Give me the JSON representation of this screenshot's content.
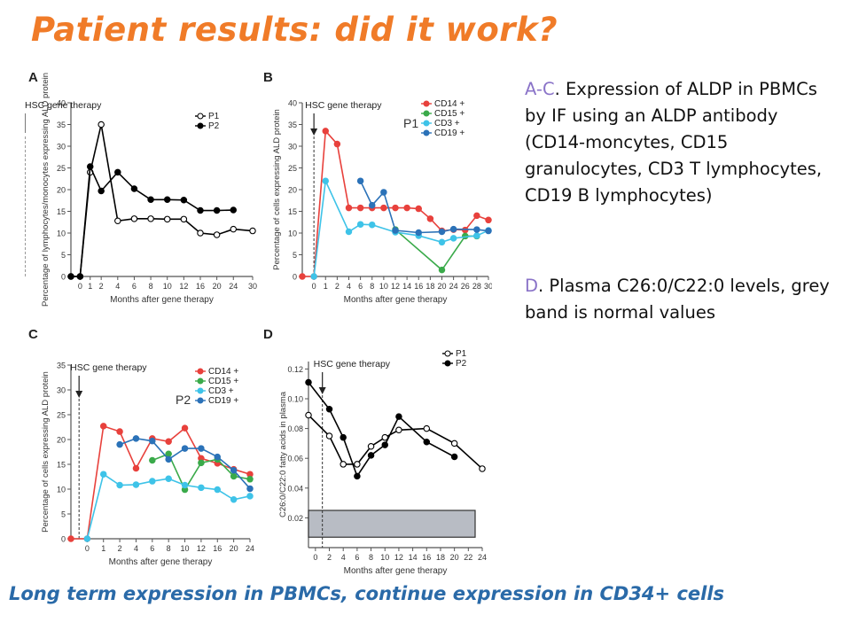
{
  "slide": {
    "title": "Patient results: did it work?",
    "text_ac_label": "A-C",
    "text_ac": ". Expression of ALDP in PBMCs by IF using an ALDP antibody (CD14-moncytes, CD15 granulocytes, CD3 T lymphocytes, CD19 B lymphocytes)",
    "text_d_label": "D",
    "text_d": ". Plasma C26:0/C22:0 levels, grey band is normal values",
    "caption": "Long term expression in PBMCs, continue expression in CD34+ cells"
  },
  "colors": {
    "title": "#f07b28",
    "caption": "#2a6aa8",
    "label": "#8a73c8",
    "CD14": "#e8413c",
    "CD15": "#3aaa4a",
    "CD3": "#3ec3e8",
    "CD19": "#2b72b8",
    "normal_band": "#b8bcc4"
  },
  "chart_data": [
    {
      "panel": "A",
      "type": "line",
      "ylabel": "Percentage of lymphocytes/monocytes expressing ALD protein",
      "xlabel": "Months after gene therapy",
      "annotation": "HSC gene therapy",
      "annotation_x": -0.5,
      "x_ticks": [
        0,
        1,
        2,
        4,
        6,
        8,
        10,
        12,
        16,
        20,
        24,
        30
      ],
      "x_tick_labels": [
        "0",
        "1",
        "2",
        "4",
        "6",
        "8",
        "10",
        "12",
        "16",
        "20",
        "24",
        "30"
      ],
      "y_ticks": [
        0,
        5,
        10,
        15,
        20,
        25,
        30,
        35,
        40
      ],
      "y_tick_labels": [
        "0",
        "5",
        "10",
        "15",
        "20",
        "25",
        "30",
        "35",
        "40"
      ],
      "ylim": [
        0,
        40
      ],
      "series": [
        {
          "name": "P1",
          "marker": "open",
          "color": "#000000",
          "x": [
            -1,
            0,
            1,
            2,
            4,
            6,
            8,
            10,
            12,
            16,
            20,
            24,
            30
          ],
          "y": [
            0,
            0,
            24,
            35,
            12.8,
            13.3,
            13.3,
            13.2,
            13.2,
            10,
            9.6,
            10.9,
            10.5
          ]
        },
        {
          "name": "P2",
          "marker": "filled",
          "color": "#000000",
          "x": [
            -1,
            0,
            1,
            2,
            4,
            6,
            8,
            10,
            12,
            16,
            20,
            24
          ],
          "y": [
            0,
            0,
            25.3,
            19.7,
            24,
            20.2,
            17.7,
            17.7,
            17.6,
            15.2,
            15.2,
            15.3
          ]
        }
      ],
      "legend": "top-right"
    },
    {
      "panel": "B",
      "type": "line",
      "ylabel": "Percentage of cells expressing ALD protein",
      "xlabel": "Months after gene therapy",
      "annotation": "HSC gene therapy",
      "annotation_x": 0,
      "group_label": "P1",
      "x_ticks": [
        0,
        1,
        2,
        4,
        6,
        8,
        10,
        12,
        14,
        16,
        18,
        20,
        24,
        26,
        28,
        30
      ],
      "x_tick_labels": [
        "0",
        "1",
        "2",
        "4",
        "6",
        "8",
        "10",
        "12",
        "14",
        "16",
        "18",
        "20",
        "24",
        "26",
        "28",
        "30"
      ],
      "y_ticks": [
        0,
        5,
        10,
        15,
        20,
        25,
        30,
        35,
        40
      ],
      "y_tick_labels": [
        "0",
        "5",
        "10",
        "15",
        "20",
        "25",
        "30",
        "35",
        "40"
      ],
      "ylim": [
        0,
        40
      ],
      "series": [
        {
          "name": "CD14 +",
          "color": "#e8413c",
          "x": [
            -1,
            0,
            1,
            2,
            4,
            6,
            8,
            10,
            12,
            14,
            16,
            18,
            20,
            24,
            26,
            28,
            30
          ],
          "y": [
            0,
            0,
            33.5,
            30.5,
            15.8,
            15.8,
            15.8,
            15.8,
            15.8,
            15.8,
            15.6,
            13.3,
            10.5,
            10.8,
            10.7,
            14,
            13
          ]
        },
        {
          "name": "CD15 +",
          "color": "#3aaa4a",
          "x": [
            12,
            20,
            26,
            28
          ],
          "y": [
            10.8,
            1.5,
            9.3,
            9.3
          ]
        },
        {
          "name": "CD3 +",
          "color": "#3ec3e8",
          "x": [
            0,
            1,
            4,
            6,
            8,
            12,
            16,
            20,
            24,
            28,
            30
          ],
          "y": [
            0,
            22,
            10.3,
            12,
            11.9,
            10.2,
            9.4,
            7.9,
            8.8,
            9.4,
            10.6
          ]
        },
        {
          "name": "CD19 +",
          "color": "#2b72b8",
          "x": [
            6,
            8,
            10,
            12,
            16,
            20,
            24,
            28,
            30
          ],
          "y": [
            22,
            16.4,
            19.4,
            10.6,
            10.1,
            10.3,
            10.9,
            10.8,
            10.5
          ]
        }
      ],
      "legend": "top-right"
    },
    {
      "panel": "C",
      "type": "line",
      "ylabel": "Percentage of cells expressing ALD protein",
      "xlabel": "Months after gene therapy",
      "annotation": "HSC gene therapy",
      "annotation_x": -0.5,
      "group_label": "P2",
      "x_ticks": [
        0,
        1,
        2,
        4,
        6,
        8,
        10,
        12,
        16,
        20,
        24
      ],
      "x_tick_labels": [
        "0",
        "1",
        "2",
        "4",
        "6",
        "8",
        "10",
        "12",
        "16",
        "20",
        "24"
      ],
      "y_ticks": [
        0,
        5,
        10,
        15,
        20,
        25,
        30,
        35
      ],
      "y_tick_labels": [
        "0",
        "5",
        "10",
        "15",
        "20",
        "25",
        "30",
        "35"
      ],
      "ylim": [
        0,
        35
      ],
      "series": [
        {
          "name": "CD14 +",
          "color": "#e8413c",
          "x": [
            -1,
            0,
            1,
            2,
            4,
            6,
            8,
            10,
            12,
            16,
            20,
            24
          ],
          "y": [
            0,
            0,
            22.7,
            21.6,
            14.2,
            20.2,
            19.6,
            22.3,
            16.2,
            15.2,
            14,
            13
          ]
        },
        {
          "name": "CD15 +",
          "color": "#3aaa4a",
          "x": [
            6,
            8,
            10,
            12,
            16,
            20,
            24
          ],
          "y": [
            15.8,
            17.1,
            9.9,
            15.3,
            16,
            12.6,
            12
          ]
        },
        {
          "name": "CD3 +",
          "color": "#3ec3e8",
          "x": [
            0,
            1,
            2,
            4,
            6,
            8,
            10,
            12,
            16,
            20,
            24
          ],
          "y": [
            0,
            13,
            10.8,
            10.9,
            11.6,
            12.1,
            10.8,
            10.3,
            9.9,
            7.9,
            8.6
          ]
        },
        {
          "name": "CD19 +",
          "color": "#2b72b8",
          "x": [
            2,
            4,
            6,
            8,
            10,
            12,
            16,
            20,
            24
          ],
          "y": [
            19,
            20.2,
            19.7,
            16,
            18.2,
            18.2,
            16.5,
            13.8,
            10.1
          ]
        }
      ],
      "legend": "top-right"
    },
    {
      "panel": "D",
      "type": "line",
      "ylabel": "C26:0/C22:0 fatty acids in plasma",
      "xlabel": "Months after gene therapy",
      "annotation": "HSC gene therapy",
      "annotation_x": 1,
      "x_ticks": [
        0,
        2,
        4,
        6,
        8,
        10,
        12,
        14,
        16,
        18,
        20,
        22,
        24
      ],
      "x_tick_labels": [
        "0",
        "2",
        "4",
        "6",
        "8",
        "10",
        "12",
        "14",
        "16",
        "18",
        "20",
        "22",
        "24"
      ],
      "y_ticks": [
        0.02,
        0.04,
        0.06,
        0.08,
        0.1,
        0.12
      ],
      "y_tick_labels": [
        "0.02",
        "0.04",
        "0.06",
        "0.08",
        "0.10",
        "0.12"
      ],
      "ylim": [
        0,
        0.125
      ],
      "normal_band": [
        0.007,
        0.025
      ],
      "series": [
        {
          "name": "P1",
          "marker": "open",
          "color": "#000000",
          "x": [
            -1,
            2,
            4,
            6,
            8,
            10,
            12,
            16,
            20,
            24
          ],
          "y": [
            0.089,
            0.075,
            0.056,
            0.056,
            0.068,
            0.074,
            0.079,
            0.08,
            0.07,
            0.053
          ]
        },
        {
          "name": "P2",
          "marker": "filled",
          "color": "#000000",
          "x": [
            -1,
            2,
            4,
            6,
            8,
            10,
            12,
            16,
            20
          ],
          "y": [
            0.111,
            0.093,
            0.074,
            0.048,
            0.062,
            0.069,
            0.088,
            0.071,
            0.061
          ]
        }
      ],
      "legend": "top-right"
    }
  ]
}
